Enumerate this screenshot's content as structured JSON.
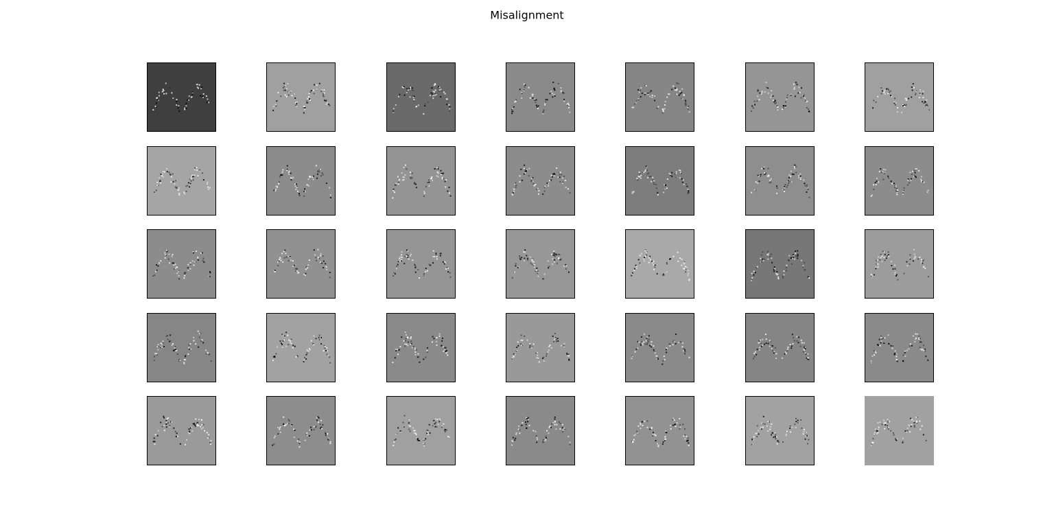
{
  "title": "Misalignment",
  "rows": 5,
  "cols": 7,
  "panels": [
    {
      "color": "#3f3f3f",
      "frame": true
    },
    {
      "color": "#a0a0a0",
      "frame": true
    },
    {
      "color": "#6a6a6a",
      "frame": true
    },
    {
      "color": "#8a8a8a",
      "frame": true
    },
    {
      "color": "#858585",
      "frame": true
    },
    {
      "color": "#959595",
      "frame": true
    },
    {
      "color": "#a0a0a0",
      "frame": true
    },
    {
      "color": "#a5a5a5",
      "frame": true
    },
    {
      "color": "#8c8c8c",
      "frame": true
    },
    {
      "color": "#949494",
      "frame": true
    },
    {
      "color": "#8c8c8c",
      "frame": true
    },
    {
      "color": "#7d7d7d",
      "frame": true
    },
    {
      "color": "#8e8e8e",
      "frame": true
    },
    {
      "color": "#8c8c8c",
      "frame": true
    },
    {
      "color": "#8c8c8c",
      "frame": true
    },
    {
      "color": "#919191",
      "frame": true
    },
    {
      "color": "#959595",
      "frame": true
    },
    {
      "color": "#979797",
      "frame": true
    },
    {
      "color": "#a9a9a9",
      "frame": true
    },
    {
      "color": "#777777",
      "frame": true
    },
    {
      "color": "#9c9c9c",
      "frame": true
    },
    {
      "color": "#868686",
      "frame": true
    },
    {
      "color": "#a2a2a2",
      "frame": true
    },
    {
      "color": "#8a8a8a",
      "frame": true
    },
    {
      "color": "#999999",
      "frame": true
    },
    {
      "color": "#8a8a8a",
      "frame": true
    },
    {
      "color": "#858585",
      "frame": true
    },
    {
      "color": "#8a8a8a",
      "frame": true
    },
    {
      "color": "#9a9a9a",
      "frame": true
    },
    {
      "color": "#8d8d8d",
      "frame": true
    },
    {
      "color": "#a0a0a0",
      "frame": true
    },
    {
      "color": "#8a8a8a",
      "frame": true
    },
    {
      "color": "#929292",
      "frame": true
    },
    {
      "color": "#a2a2a2",
      "frame": true
    },
    {
      "color": "#a1a1a1",
      "frame": false
    }
  ]
}
